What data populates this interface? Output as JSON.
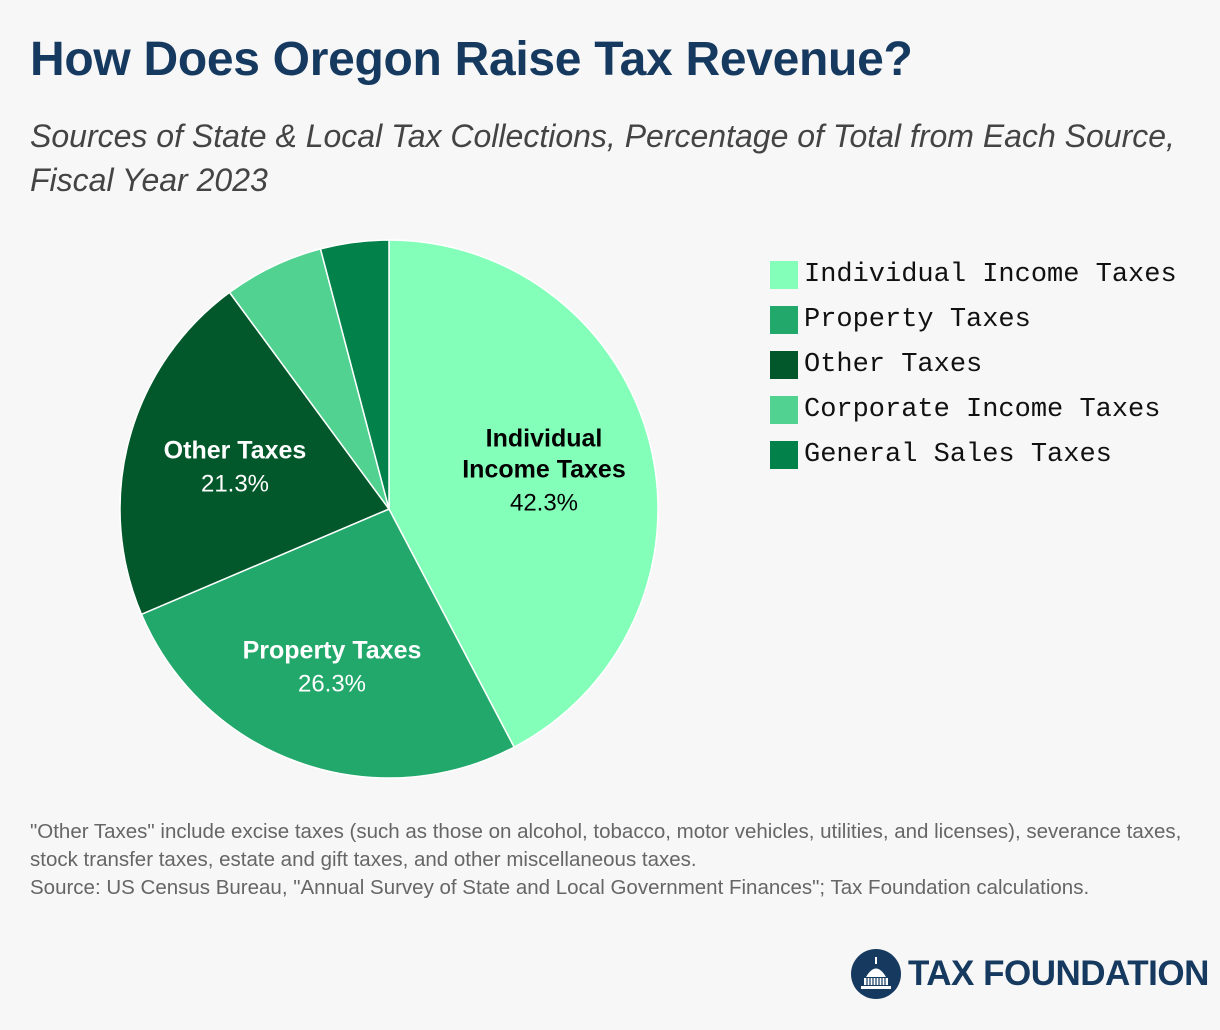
{
  "header": {
    "title": "How Does Oregon Raise Tax Revenue?",
    "subtitle": "Sources of State & Local Tax Collections, Percentage of Total from Each Source, Fiscal Year 2023"
  },
  "chart_data": {
    "type": "pie",
    "title": "How Does Oregon Raise Tax Revenue?",
    "subtitle": "Sources of State & Local Tax Collections, Percentage of Total from Each Source, Fiscal Year 2023",
    "unit": "%",
    "legend_position": "right",
    "slices": [
      {
        "label": "Individual Income Taxes",
        "label_lines": [
          "Individual",
          "Income Taxes"
        ],
        "value": 42.3,
        "value_label": "42.3%",
        "color": "#84ffb9",
        "show_label": true
      },
      {
        "label": "Property Taxes",
        "label_lines": [
          "Property Taxes"
        ],
        "value": 26.3,
        "value_label": "26.3%",
        "color": "#22a86a",
        "show_label": true
      },
      {
        "label": "Other Taxes",
        "label_lines": [
          "Other Taxes"
        ],
        "value": 21.3,
        "value_label": "21.3%",
        "color": "#02582a",
        "show_label": true
      },
      {
        "label": "Corporate Income Taxes",
        "label_lines": [],
        "value": 6.0,
        "value_label": "",
        "color": "#52d290",
        "show_label": false
      },
      {
        "label": "General Sales Taxes",
        "label_lines": [],
        "value": 4.1,
        "value_label": "",
        "color": "#02824a",
        "show_label": false
      }
    ]
  },
  "legend": {
    "items": [
      {
        "label": "Individual Income Taxes",
        "color": "#84ffb9"
      },
      {
        "label": "Property Taxes",
        "color": "#22a86a"
      },
      {
        "label": "Other Taxes",
        "color": "#02582a"
      },
      {
        "label": "Corporate Income Taxes",
        "color": "#52d290"
      },
      {
        "label": "General Sales Taxes",
        "color": "#02824a"
      }
    ]
  },
  "footer": {
    "note": "\"Other Taxes\" include excise taxes (such as those on alcohol, tobacco, motor vehicles, utilities, and licenses), severance taxes, stock transfer taxes, estate and gift taxes, and other miscellaneous taxes.",
    "source": "Source: US Census Bureau, \"Annual Survey of State and Local Government Finances\"; Tax Foundation calculations.",
    "logo_text": "TAX FOUNDATION"
  },
  "colors": {
    "title": "#163a5f",
    "background": "#f7f7f7",
    "label_dark": "#000000",
    "label_light": "#ffffff"
  }
}
